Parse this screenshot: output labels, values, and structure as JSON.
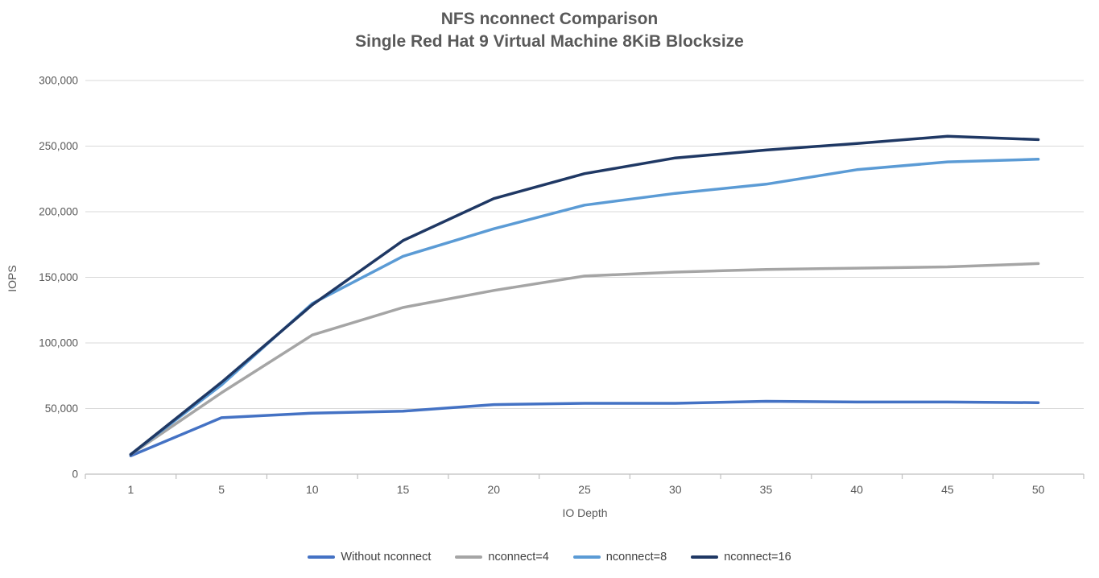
{
  "title": {
    "line1": "NFS nconnect Comparison",
    "line2": "Single Red Hat 9 Virtual Machine 8KiB Blocksize"
  },
  "chart_data": {
    "type": "line",
    "x": [
      1,
      5,
      10,
      15,
      20,
      25,
      30,
      35,
      40,
      45,
      50
    ],
    "xlabel": "IO Depth",
    "ylabel": "IOPS",
    "ylim": [
      0,
      300000
    ],
    "ytick_step": 50000,
    "ytick_labels": [
      "0",
      "50,000",
      "100,000",
      "150,000",
      "200,000",
      "250,000",
      "300,000"
    ],
    "grid": true,
    "legend_position": "bottom",
    "series": [
      {
        "name": "Without nconnect",
        "color": "#4472C4",
        "values": [
          14000,
          43000,
          46500,
          48000,
          53000,
          54000,
          54000,
          55500,
          55000,
          55000,
          54500
        ]
      },
      {
        "name": "nconnect=4",
        "color": "#A5A5A5",
        "values": [
          15000,
          62000,
          106000,
          127000,
          140000,
          151000,
          154000,
          156000,
          157000,
          158000,
          160500
        ]
      },
      {
        "name": "nconnect=8",
        "color": "#5B9BD5",
        "values": [
          15000,
          68000,
          130000,
          166000,
          187000,
          205000,
          214000,
          221000,
          232000,
          238000,
          240000
        ]
      },
      {
        "name": "nconnect=16",
        "color": "#1F3864",
        "values": [
          15000,
          70000,
          129000,
          178000,
          210000,
          229000,
          241000,
          247000,
          252000,
          257500,
          255000
        ]
      }
    ]
  },
  "style_colors": {
    "gridline": "#D9D9D9",
    "axis_line": "#BFBFBF",
    "tick_label": "#595959",
    "legend_text": "#404040"
  }
}
